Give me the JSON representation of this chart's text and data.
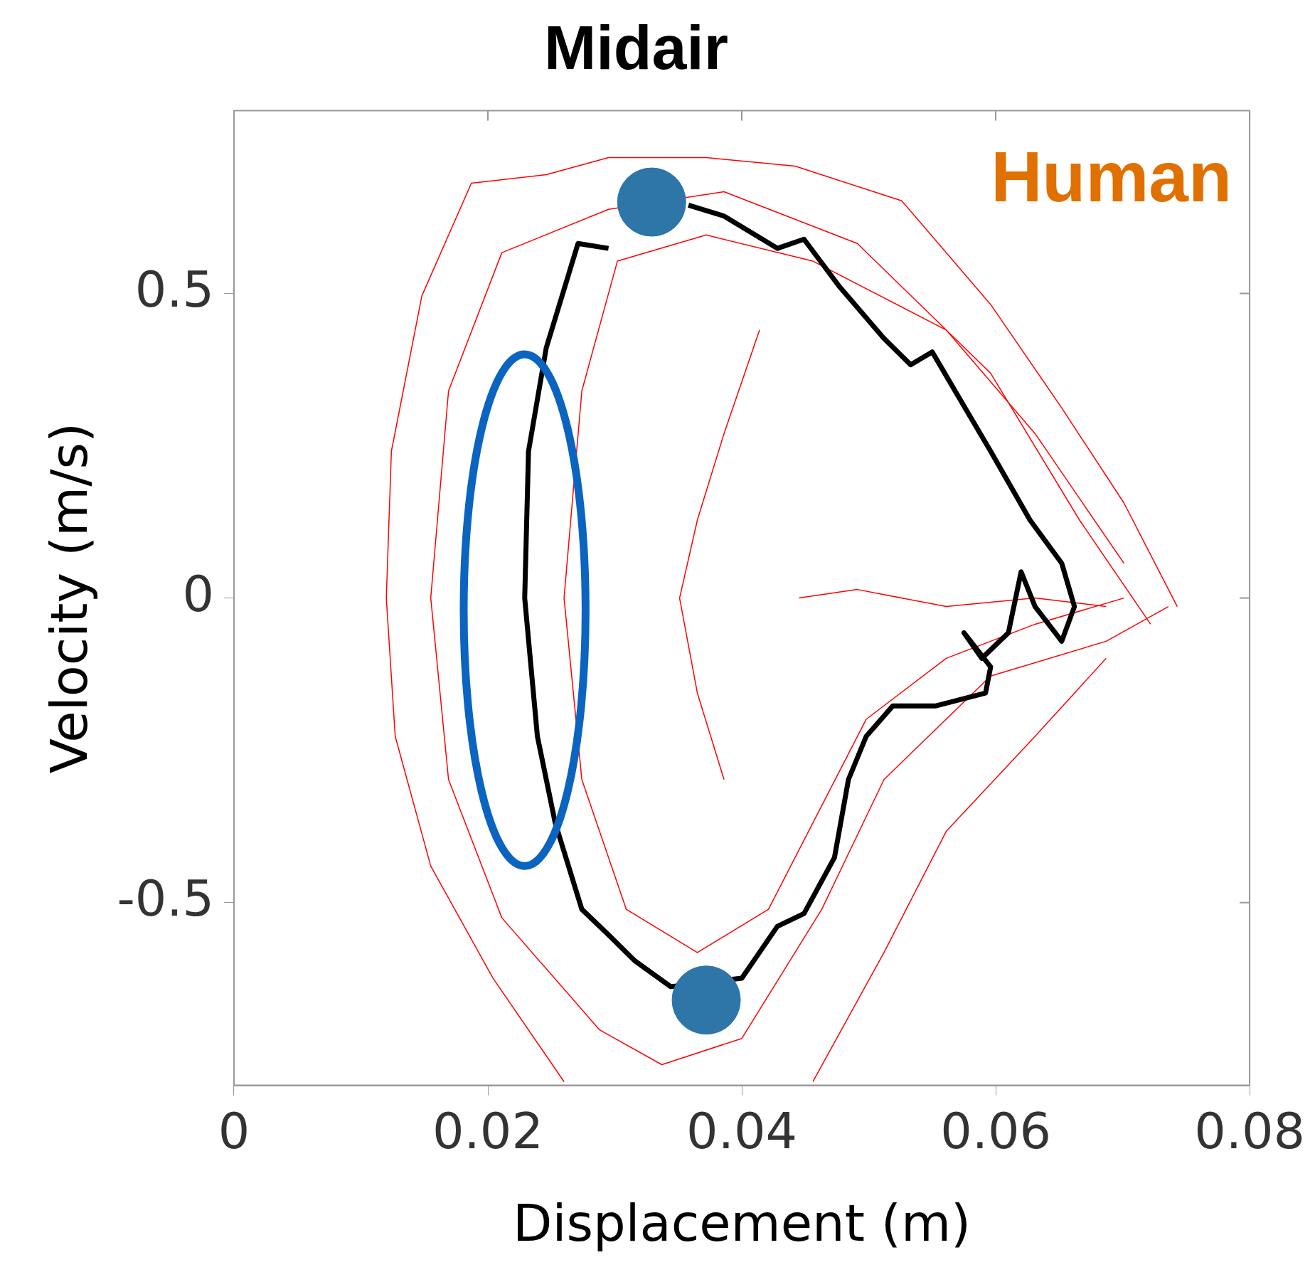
{
  "chart_data": {
    "type": "line",
    "title": "Midair",
    "xlabel": "Displacement (m)",
    "ylabel": "Velocity (m/s)",
    "annotations": [
      "Human"
    ],
    "xlim": [
      0,
      0.08
    ],
    "ylim": [
      -0.8,
      0.8
    ],
    "xticks": [
      0,
      0.02,
      0.04,
      0.06,
      0.08
    ],
    "yticks": [
      -0.5,
      0,
      0.5
    ],
    "grid": false,
    "legend": false,
    "marker": "none",
    "line_style": "solid",
    "series": [
      {
        "type": "line",
        "color": "#ff0000",
        "x": [
          0.0743,
          0.0701,
          0.0652,
          0.0596,
          0.0526,
          0.0442,
          0.0372,
          0.0295,
          0.0246,
          0.0187,
          0.0148,
          0.0124,
          0.012,
          0.0127,
          0.0155,
          0.0204,
          0.026
        ],
        "values": [
          -0.014,
          0.156,
          0.312,
          0.482,
          0.652,
          0.709,
          0.723,
          0.723,
          0.695,
          0.681,
          0.496,
          0.241,
          0,
          -0.227,
          -0.44,
          -0.624,
          -0.794
        ]
      },
      {
        "type": "line",
        "color": "#ff0000",
        "x": [
          0.0722,
          0.0666,
          0.0596,
          0.0491,
          0.0386,
          0.0295,
          0.0211,
          0.0169,
          0.0155,
          0.0169,
          0.0211,
          0.0288,
          0.0337,
          0.04,
          0.0463,
          0.0512,
          0.0596,
          0.0687,
          0.0736
        ],
        "values": [
          -0.043,
          0.128,
          0.369,
          0.582,
          0.667,
          0.638,
          0.567,
          0.34,
          0,
          -0.298,
          -0.525,
          -0.709,
          -0.766,
          -0.723,
          -0.511,
          -0.298,
          -0.128,
          -0.071,
          -0.014
        ]
      },
      {
        "type": "line",
        "color": "#ff0000",
        "x": [
          0.0701,
          0.0631,
          0.0561,
          0.0456,
          0.0372,
          0.0302,
          0.0274,
          0.026,
          0.0274,
          0.0309,
          0.0365,
          0.0421,
          0.0456,
          0.0498,
          0.0561,
          0.0631,
          0.0701
        ],
        "values": [
          0.057,
          0.27,
          0.44,
          0.553,
          0.596,
          0.553,
          0.34,
          0,
          -0.298,
          -0.511,
          -0.582,
          -0.511,
          -0.369,
          -0.199,
          -0.099,
          -0.043,
          0
        ]
      },
      {
        "type": "line",
        "color": "#ff0000",
        "x": [
          0.0687,
          0.0631,
          0.0561,
          0.0512,
          0.0456
        ],
        "values": [
          -0.099,
          -0.227,
          -0.383,
          -0.582,
          -0.794
        ]
      },
      {
        "type": "line",
        "color": "#ff0000",
        "x": [
          0.0445,
          0.0491,
          0.0561,
          0.0631,
          0.0687
        ],
        "values": [
          0,
          0.014,
          -0.014,
          0,
          -0.014
        ]
      },
      {
        "type": "line",
        "color": "#ff0000",
        "x": [
          0.0414,
          0.0386,
          0.0365,
          0.0351,
          0.0365,
          0.0386
        ],
        "values": [
          0.44,
          0.27,
          0.128,
          0,
          -0.156,
          -0.298
        ]
      },
      {
        "type": "line",
        "color": "#000000",
        "x": [
          0.0358,
          0.0386,
          0.0428,
          0.0449,
          0.0477,
          0.0512,
          0.0533,
          0.055,
          0.0568,
          0.0596,
          0.0627,
          0.0652,
          0.0662,
          0.0652,
          0.0631,
          0.062,
          0.061,
          0.0589,
          0.0575,
          0.0596,
          0.0592,
          0.0553,
          0.0519,
          0.0498,
          0.0484,
          0.0473,
          0.0449,
          0.0428,
          0.04,
          0.0344,
          0.0316,
          0.0295,
          0.0274,
          0.0253,
          0.0239,
          0.0229,
          0.0232,
          0.0246,
          0.0271,
          0.0295
        ],
        "values": [
          0.645,
          0.627,
          0.574,
          0.589,
          0.511,
          0.426,
          0.383,
          0.404,
          0.34,
          0.241,
          0.128,
          0.057,
          -0.014,
          -0.071,
          -0.014,
          0.043,
          -0.057,
          -0.099,
          -0.057,
          -0.113,
          -0.156,
          -0.177,
          -0.177,
          -0.227,
          -0.298,
          -0.426,
          -0.518,
          -0.539,
          -0.624,
          -0.638,
          -0.596,
          -0.553,
          -0.511,
          -0.369,
          -0.227,
          0,
          0.241,
          0.411,
          0.582,
          0.574
        ]
      },
      {
        "type": "scatter",
        "color": "#2e75a8",
        "marker": "circle",
        "x": [
          0.0329,
          0.0372
        ],
        "values": [
          0.65,
          -0.66
        ]
      }
    ]
  }
}
